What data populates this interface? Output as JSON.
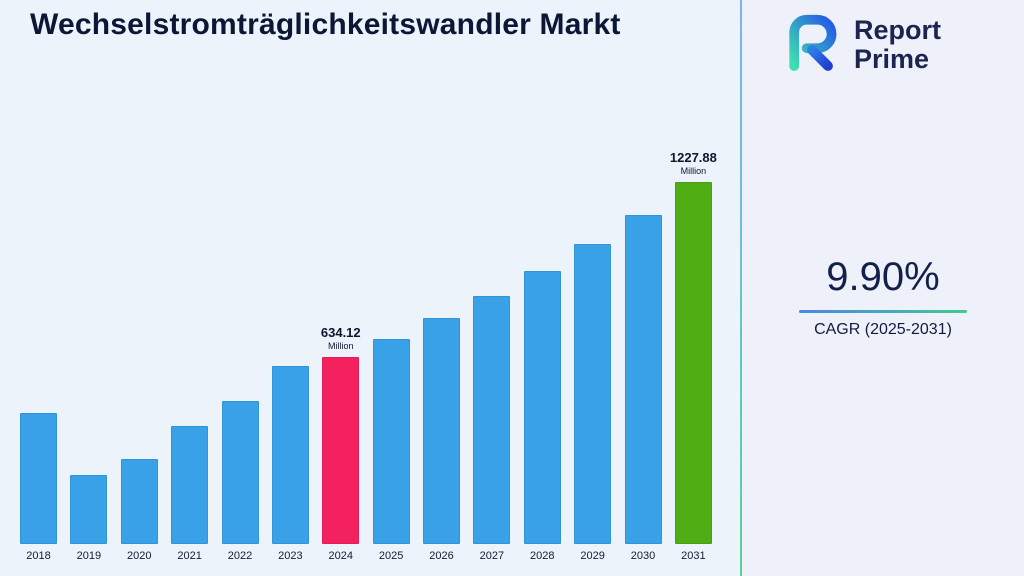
{
  "title": "Wechselstromträglichkeitswandler Markt",
  "logo": {
    "line1": "Report",
    "line2": "Prime"
  },
  "stats": {
    "cagr_value": "9.90%",
    "cagr_label": "CAGR (2025-2031)"
  },
  "colors": {
    "background_left": "#edf3fb",
    "background_right": "#eef1fa",
    "title_text": "#0c1736",
    "bar_blue": "#38a1e8",
    "bar_pink": "#f4215f",
    "bar_green": "#4fae13",
    "divider_gradient": [
      "#7db4ef",
      "#55d694"
    ],
    "underline_gradient": [
      "#4a87e8",
      "#42c98f"
    ],
    "logo_navy": "#1b2550",
    "logo_gradient": [
      "#3fe0b0",
      "#2457e6"
    ]
  },
  "chart_data": {
    "type": "bar",
    "title": "Wechselstromträglichkeitswandler Markt",
    "unit": "Million",
    "categories": [
      "2018",
      "2019",
      "2020",
      "2021",
      "2022",
      "2023",
      "2024",
      "2025",
      "2026",
      "2027",
      "2028",
      "2029",
      "2030",
      "2031"
    ],
    "values": [
      446,
      233,
      288,
      401,
      485,
      604,
      634.12,
      697,
      766,
      842,
      925,
      1017,
      1117,
      1227.88
    ],
    "labeled_points": [
      {
        "category": "2024",
        "label": "634.12",
        "unit": "Million"
      },
      {
        "category": "2031",
        "label": "1227.88",
        "unit": "Million"
      }
    ],
    "bar_color": "#38a1e8",
    "highlight_colors": {
      "2024": "#f4215f",
      "2031": "#4fae13"
    },
    "ylim": [
      0,
      1300
    ],
    "grid": false,
    "legend": "none",
    "note": "values for unlabeled years estimated from bar heights"
  }
}
